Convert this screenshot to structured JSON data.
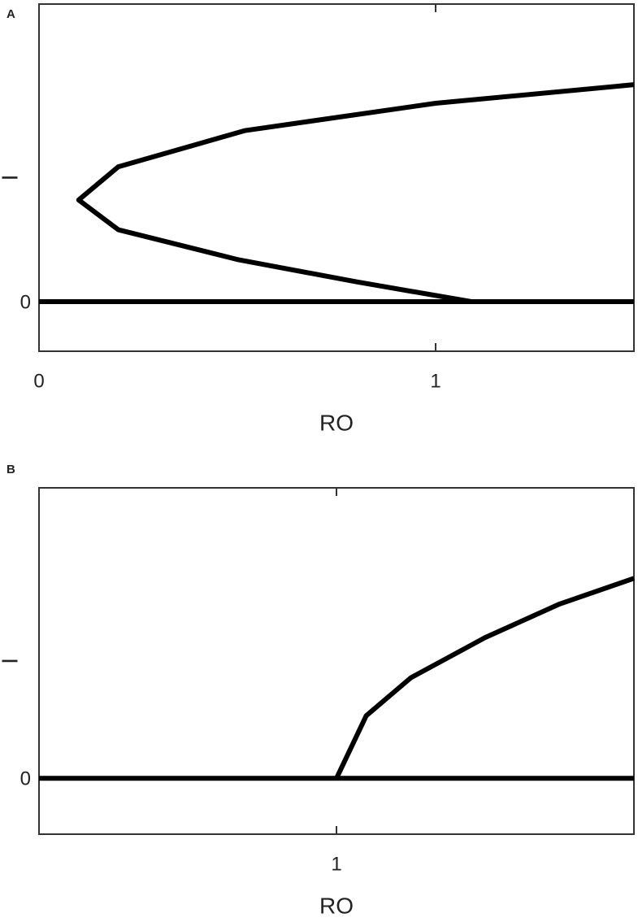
{
  "chart_data": [
    {
      "type": "line",
      "label": "A",
      "xlabel": "RO",
      "ylabel": "I",
      "xlim": [
        0,
        1.5
      ],
      "ylim": [
        -0.2,
        1.2
      ],
      "xticks": [
        0,
        1
      ],
      "yticks": [
        0
      ],
      "series": [
        {
          "color": "#000000",
          "x": [
            1.5,
            1.0,
            0.52,
            0.2,
            0.1,
            0.2,
            0.5,
            0.8,
            1.09
          ],
          "values": [
            0.875,
            0.8,
            0.69,
            0.544,
            0.41,
            0.29,
            0.17,
            0.08,
            0
          ]
        },
        {
          "color": "#000000",
          "x": [
            0,
            1.5
          ],
          "values": [
            0,
            0
          ]
        }
      ]
    },
    {
      "type": "line",
      "label": "B",
      "xlabel": "RO",
      "ylabel": "I",
      "xlim": [
        0,
        2
      ],
      "ylim": [
        -0.25,
        1.3
      ],
      "xticks": [
        1
      ],
      "yticks": [
        0
      ],
      "series": [
        {
          "color": "#000000",
          "x": [
            1,
            1.1,
            1.25,
            1.5,
            1.75,
            2
          ],
          "values": [
            0,
            0.28,
            0.45,
            0.63,
            0.78,
            0.895
          ]
        },
        {
          "color": "#000000",
          "x": [
            0,
            2
          ],
          "values": [
            0,
            0
          ]
        }
      ]
    }
  ]
}
